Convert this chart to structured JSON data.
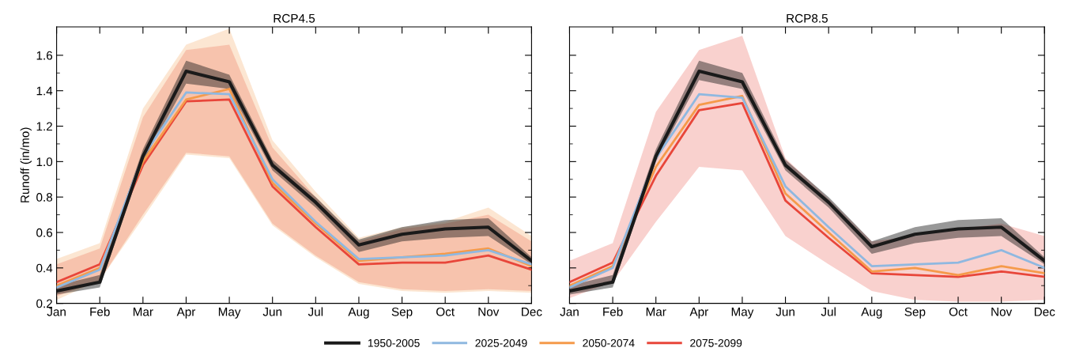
{
  "chart_data": [
    {
      "type": "line",
      "title": "RCP4.5",
      "ylabel": "Runoff (in/mo)",
      "categories": [
        "Jan",
        "Feb",
        "Mar",
        "Apr",
        "May",
        "Jun",
        "Jul",
        "Aug",
        "Sep",
        "Oct",
        "Nov",
        "Dec"
      ],
      "ylim": [
        0.2,
        1.76
      ],
      "yticks": [
        0.2,
        0.4,
        0.6,
        0.8,
        {
          "value": 1,
          "label": "1.0"
        },
        1.2,
        1.4,
        1.6
      ],
      "grid": false,
      "legend": "bottom",
      "marker": "none",
      "line_style": "solid",
      "series": [
        {
          "name": "1950-2005",
          "color": "#1a1a1a",
          "values": [
            0.27,
            0.32,
            1.03,
            1.51,
            1.45,
            0.98,
            0.77,
            0.53,
            0.59,
            0.62,
            0.63,
            0.44
          ],
          "lower": [
            0.25,
            0.29,
            1.0,
            1.44,
            1.41,
            0.95,
            0.74,
            0.49,
            0.55,
            0.57,
            0.58,
            0.42
          ],
          "upper": [
            0.3,
            0.36,
            1.07,
            1.57,
            1.49,
            1.01,
            0.8,
            0.56,
            0.63,
            0.67,
            0.68,
            0.46
          ]
        },
        {
          "name": "2025-2049",
          "color": "#8fb8e0",
          "values": [
            0.29,
            0.39,
            1.03,
            1.39,
            1.38,
            0.9,
            0.66,
            0.45,
            0.46,
            0.47,
            0.5,
            0.42
          ]
        },
        {
          "name": "2050-2074",
          "color": "#f59a4a",
          "values": [
            0.3,
            0.4,
            1.0,
            1.35,
            1.41,
            0.88,
            0.65,
            0.44,
            0.46,
            0.48,
            0.51,
            0.41
          ],
          "lower": [
            0.22,
            0.33,
            0.68,
            1.04,
            1.02,
            0.64,
            0.46,
            0.31,
            0.27,
            0.26,
            0.27,
            0.26
          ],
          "upper": [
            0.45,
            0.54,
            1.3,
            1.66,
            1.75,
            1.12,
            0.83,
            0.57,
            0.63,
            0.66,
            0.74,
            0.58
          ]
        },
        {
          "name": "2075-2099",
          "color": "#e8463a",
          "values": [
            0.32,
            0.42,
            0.98,
            1.34,
            1.35,
            0.86,
            0.63,
            0.42,
            0.43,
            0.43,
            0.47,
            0.39
          ],
          "lower": [
            0.24,
            0.33,
            0.7,
            1.05,
            1.03,
            0.65,
            0.47,
            0.32,
            0.28,
            0.27,
            0.28,
            0.27
          ],
          "upper": [
            0.42,
            0.51,
            1.25,
            1.63,
            1.66,
            1.08,
            0.8,
            0.55,
            0.62,
            0.65,
            0.7,
            0.55
          ]
        }
      ]
    },
    {
      "type": "line",
      "title": "RCP8.5",
      "categories": [
        "Jan",
        "Feb",
        "Mar",
        "Apr",
        "May",
        "Jun",
        "Jul",
        "Aug",
        "Sep",
        "Oct",
        "Nov",
        "Dec"
      ],
      "ylim": [
        0.2,
        1.76
      ],
      "yticks": [
        0.2,
        0.4,
        0.6,
        0.8,
        1,
        1.2,
        1.4,
        1.6
      ],
      "tick_labels": "x",
      "grid": false,
      "marker": "none",
      "line_style": "solid",
      "series": [
        {
          "name": "1950-2005",
          "color": "#1a1a1a",
          "values": [
            0.27,
            0.32,
            1.03,
            1.51,
            1.45,
            0.98,
            0.77,
            0.52,
            0.59,
            0.62,
            0.63,
            0.44
          ],
          "lower": [
            0.25,
            0.29,
            1.0,
            1.46,
            1.41,
            0.95,
            0.74,
            0.48,
            0.54,
            0.57,
            0.58,
            0.42
          ],
          "upper": [
            0.3,
            0.36,
            1.07,
            1.57,
            1.5,
            1.01,
            0.8,
            0.55,
            0.63,
            0.67,
            0.68,
            0.46
          ]
        },
        {
          "name": "2025-2049",
          "color": "#8fb8e0",
          "values": [
            0.29,
            0.4,
            1.02,
            1.38,
            1.36,
            0.86,
            0.63,
            0.41,
            0.42,
            0.43,
            0.5,
            0.4
          ]
        },
        {
          "name": "2050-2074",
          "color": "#f59a4a",
          "values": [
            0.3,
            0.41,
            0.97,
            1.32,
            1.37,
            0.82,
            0.6,
            0.38,
            0.4,
            0.36,
            0.41,
            0.37
          ]
        },
        {
          "name": "2075-2099",
          "color": "#e8463a",
          "values": [
            0.32,
            0.43,
            0.92,
            1.29,
            1.33,
            0.78,
            0.57,
            0.37,
            0.36,
            0.35,
            0.38,
            0.35
          ],
          "lower": [
            0.23,
            0.32,
            0.66,
            0.97,
            0.95,
            0.58,
            0.42,
            0.27,
            0.22,
            0.21,
            0.21,
            0.22
          ],
          "upper": [
            0.44,
            0.54,
            1.28,
            1.63,
            1.71,
            1.02,
            0.79,
            0.55,
            0.58,
            0.62,
            0.65,
            0.58
          ]
        }
      ]
    }
  ]
}
